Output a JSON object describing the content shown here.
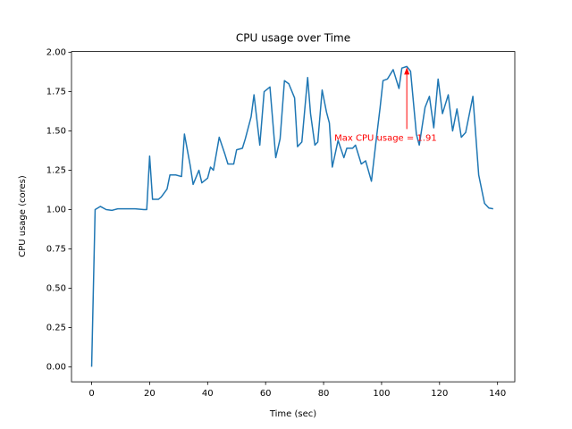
{
  "chart_data": {
    "type": "line",
    "title": "CPU usage over Time",
    "x_label": "Time (sec)",
    "y_label": "CPU usage (cores)",
    "annotation": "Max CPU usage = 1.91",
    "annotation_color": "#ff0000",
    "x": [
      0,
      1.2,
      3,
      5,
      7,
      9,
      15,
      18,
      19,
      20,
      21,
      23,
      24,
      26,
      27,
      29,
      31,
      32,
      34,
      35,
      37,
      38,
      40,
      41,
      42,
      44,
      46,
      47,
      49,
      50,
      52,
      53,
      55,
      56,
      58,
      59.5,
      61.5,
      63.5,
      65,
      66.5,
      68,
      70,
      71,
      72.5,
      74.5,
      75.5,
      77,
      78,
      79.5,
      81,
      82,
      83,
      85,
      87,
      88,
      90,
      91,
      93,
      94.5,
      96.5,
      98,
      99.5,
      100.5,
      102,
      104,
      106,
      107,
      108.7,
      110,
      112,
      113,
      115,
      116.5,
      118,
      119.5,
      121,
      123,
      124.5,
      126,
      127.5,
      129,
      131.5,
      133.5,
      135.5,
      137,
      138.5
    ],
    "series": [
      {
        "name": "CPU usage",
        "color": "#1f77b4",
        "values": [
          0,
          1.0,
          1.02,
          1.0,
          0.995,
          1.005,
          1.005,
          1.0,
          1.0,
          1.34,
          1.065,
          1.065,
          1.08,
          1.13,
          1.22,
          1.22,
          1.21,
          1.48,
          1.28,
          1.16,
          1.25,
          1.17,
          1.2,
          1.27,
          1.25,
          1.46,
          1.35,
          1.29,
          1.29,
          1.38,
          1.39,
          1.45,
          1.59,
          1.73,
          1.41,
          1.75,
          1.78,
          1.33,
          1.45,
          1.82,
          1.8,
          1.71,
          1.4,
          1.43,
          1.84,
          1.61,
          1.41,
          1.43,
          1.76,
          1.62,
          1.55,
          1.27,
          1.44,
          1.33,
          1.39,
          1.39,
          1.41,
          1.29,
          1.31,
          1.18,
          1.42,
          1.65,
          1.82,
          1.83,
          1.89,
          1.77,
          1.9,
          1.91,
          1.88,
          1.48,
          1.41,
          1.65,
          1.72,
          1.52,
          1.83,
          1.61,
          1.73,
          1.5,
          1.64,
          1.46,
          1.49,
          1.72,
          1.22,
          1.04,
          1.01,
          1.005
        ]
      }
    ],
    "xlim": [
      -6.95,
      145.95
    ],
    "ylim": [
      -0.0955,
      2.0055
    ],
    "xticks": [
      0,
      20,
      40,
      60,
      80,
      100,
      120,
      140
    ],
    "yticks": [
      {
        "value": 0,
        "label": "0.00"
      },
      {
        "value": 0.25,
        "label": "0.25"
      },
      {
        "value": 0.5,
        "label": "0.50"
      },
      {
        "value": 0.75,
        "label": "0.75"
      },
      {
        "value": 1,
        "label": "1.00"
      },
      {
        "value": 1.25,
        "label": "1.25"
      },
      {
        "value": 1.5,
        "label": "1.50"
      },
      {
        "value": 1.75,
        "label": "1.75"
      },
      {
        "value": 2,
        "label": "2.00"
      }
    ],
    "grid": false
  }
}
